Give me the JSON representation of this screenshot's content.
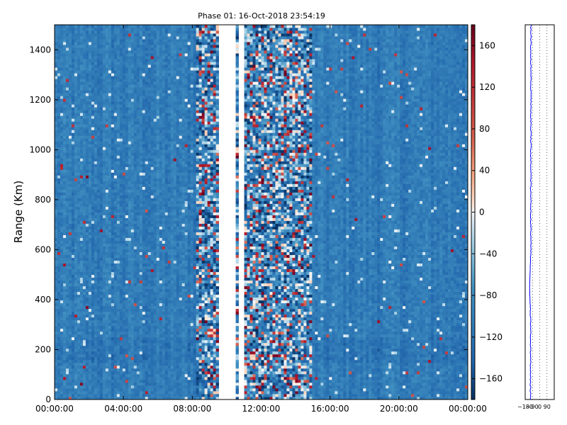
{
  "chart_data": [
    {
      "type": "heatmap",
      "title": "Phase 01: 16-Oct-2018 23:54:19",
      "ylabel": "Range (Km)",
      "xlabel": "",
      "x_tick_labels": [
        "00:00:00",
        "04:00:00",
        "08:00:00",
        "12:00:00",
        "16:00:00",
        "20:00:00",
        "00:00:00"
      ],
      "x_tick_hours": [
        0,
        4,
        8,
        12,
        16,
        20,
        24
      ],
      "xlim_hours": [
        0,
        24
      ],
      "y_tick_labels": [
        "0",
        "200",
        "400",
        "600",
        "800",
        "1000",
        "1200",
        "1400"
      ],
      "y_ticks": [
        0,
        200,
        400,
        600,
        800,
        1000,
        1200,
        1400
      ],
      "ylim": [
        0,
        1500
      ],
      "colorbar": {
        "vmin": -180,
        "vmax": 180,
        "colormap": "RdBu_r",
        "tick_values": [
          -160,
          -120,
          -80,
          -40,
          0,
          40,
          80,
          120,
          160
        ],
        "tick_labels": [
          "−160",
          "−120",
          "−80",
          "−40",
          "0",
          "40",
          "80",
          "120",
          "160"
        ]
      },
      "regions": [
        {
          "x": [
            0,
            8.3
          ],
          "texture": "smooth",
          "dominant_value": -110
        },
        {
          "x": [
            8.3,
            9.6
          ],
          "texture": "noisy",
          "dominant_value": -60
        },
        {
          "x": [
            9.6,
            10.5
          ],
          "texture": "empty"
        },
        {
          "x": [
            10.5,
            10.65
          ],
          "texture": "noisy",
          "dominant_value": -60
        },
        {
          "x": [
            10.65,
            11.05
          ],
          "texture": "empty"
        },
        {
          "x": [
            11.05,
            14.9
          ],
          "texture": "noisy",
          "dominant_value": -60
        },
        {
          "x": [
            14.9,
            24
          ],
          "texture": "smooth",
          "dominant_value": -110
        }
      ],
      "grid": false
    },
    {
      "type": "line",
      "x_tick_labels": [
        "−180",
        "−90",
        "0",
        "90"
      ],
      "x_ticks": [
        -180,
        -90,
        0,
        90
      ],
      "xlim": [
        -180,
        180
      ],
      "ylim": [
        0,
        1500
      ],
      "series": [
        {
          "color": "#0000ff",
          "profile": {
            "range_km": [
              0,
              300,
              450,
              600,
              900,
              1200,
              1500
            ],
            "phase_deg": [
              -115,
              -112,
              -125,
              -110,
              -110,
              -108,
              -110
            ]
          }
        }
      ],
      "grid": "vertical dotted"
    }
  ]
}
